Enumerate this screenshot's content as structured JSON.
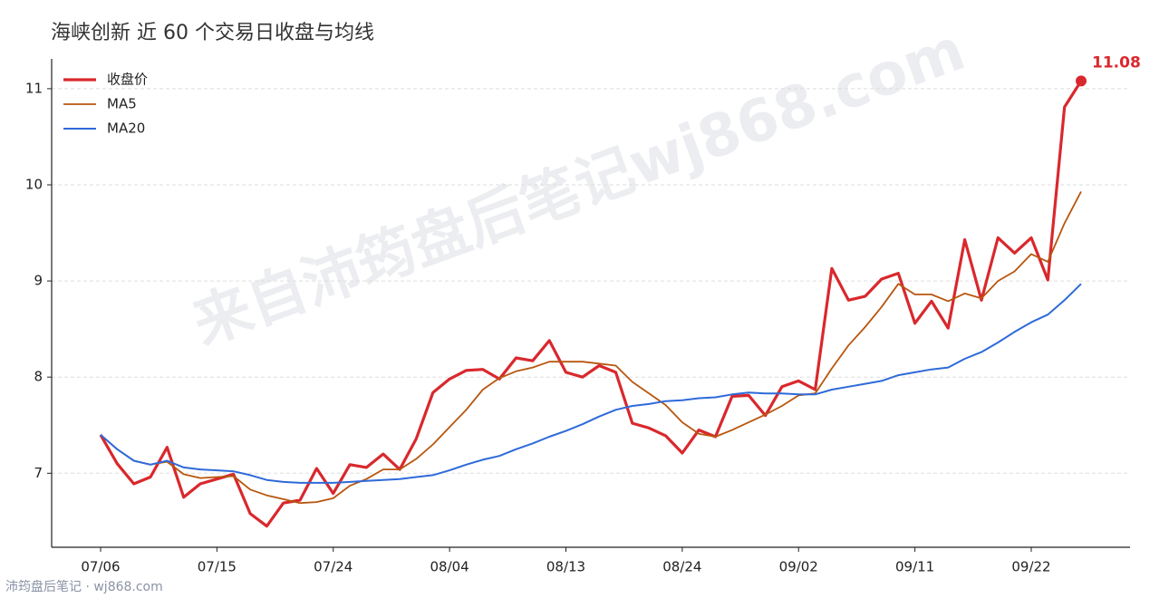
{
  "chart_data": {
    "type": "line",
    "title": "海峡创新 近 60 个交易日收盘与均线",
    "watermark": "来自沛筠盘后笔记wj868.com",
    "footer": "沛筠盘后笔记 · wj868.com",
    "categories": [
      "07/06",
      null,
      null,
      null,
      null,
      null,
      null,
      "07/15",
      null,
      null,
      null,
      null,
      null,
      null,
      "07/24",
      null,
      null,
      null,
      null,
      null,
      null,
      "08/04",
      null,
      null,
      null,
      null,
      null,
      null,
      "08/13",
      null,
      null,
      null,
      null,
      null,
      null,
      "08/24",
      null,
      null,
      null,
      null,
      null,
      null,
      "09/02",
      null,
      null,
      null,
      null,
      null,
      null,
      "09/11",
      null,
      null,
      null,
      null,
      null,
      null,
      "09/22",
      null,
      null,
      null
    ],
    "series": [
      {
        "name": "收盘价",
        "color": "#d9282d",
        "width": 3.2,
        "values": [
          7.4,
          7.1,
          6.89,
          6.96,
          7.27,
          6.75,
          6.89,
          6.94,
          6.99,
          6.58,
          6.45,
          6.69,
          6.72,
          7.05,
          6.79,
          7.09,
          7.06,
          7.2,
          7.04,
          7.36,
          7.84,
          7.98,
          8.07,
          8.08,
          7.98,
          8.2,
          8.17,
          8.38,
          8.05,
          8.0,
          8.12,
          8.05,
          7.52,
          7.47,
          7.39,
          7.21,
          7.45,
          7.38,
          7.8,
          7.81,
          7.6,
          7.9,
          7.96,
          7.87,
          9.13,
          8.8,
          8.84,
          9.02,
          9.08,
          8.56,
          8.79,
          8.51,
          9.43,
          8.8,
          9.45,
          9.29,
          9.45,
          9.01,
          10.81,
          11.08
        ]
      },
      {
        "name": "MA5",
        "color": "#b8560f",
        "width": 1.8,
        "values": [
          7.4,
          7.25,
          7.13,
          7.09,
          7.12,
          6.99,
          6.95,
          6.96,
          6.97,
          6.83,
          6.77,
          6.73,
          6.69,
          6.7,
          6.74,
          6.87,
          6.94,
          7.04,
          7.04,
          7.15,
          7.3,
          7.48,
          7.66,
          7.87,
          7.99,
          8.06,
          8.1,
          8.16,
          8.16,
          8.16,
          8.14,
          8.12,
          7.95,
          7.83,
          7.71,
          7.53,
          7.41,
          7.38,
          7.45,
          7.53,
          7.61,
          7.7,
          7.81,
          7.83,
          8.09,
          8.33,
          8.52,
          8.73,
          8.97,
          8.86,
          8.86,
          8.79,
          8.87,
          8.82,
          9.0,
          9.1,
          9.28,
          9.2,
          9.6,
          9.93
        ]
      },
      {
        "name": "MA20",
        "color": "#2e6ad9",
        "width": 2,
        "values": [
          7.4,
          7.25,
          7.13,
          7.09,
          7.13,
          7.06,
          7.04,
          7.03,
          7.02,
          6.98,
          6.93,
          6.91,
          6.9,
          6.9,
          6.9,
          6.91,
          6.92,
          6.93,
          6.94,
          6.96,
          6.98,
          7.03,
          7.09,
          7.14,
          7.18,
          7.25,
          7.31,
          7.38,
          7.44,
          7.51,
          7.59,
          7.66,
          7.7,
          7.72,
          7.75,
          7.76,
          7.78,
          7.79,
          7.82,
          7.84,
          7.83,
          7.83,
          7.82,
          7.82,
          7.87,
          7.9,
          7.93,
          7.96,
          8.02,
          8.05,
          8.08,
          8.1,
          8.19,
          8.26,
          8.36,
          8.47,
          8.57,
          8.65,
          8.8,
          8.97
        ]
      }
    ],
    "ylim": [
      6.23,
      11.31
    ],
    "yticks": [
      7,
      8,
      9,
      10,
      11
    ],
    "grid": true,
    "legend": "upper left"
  }
}
